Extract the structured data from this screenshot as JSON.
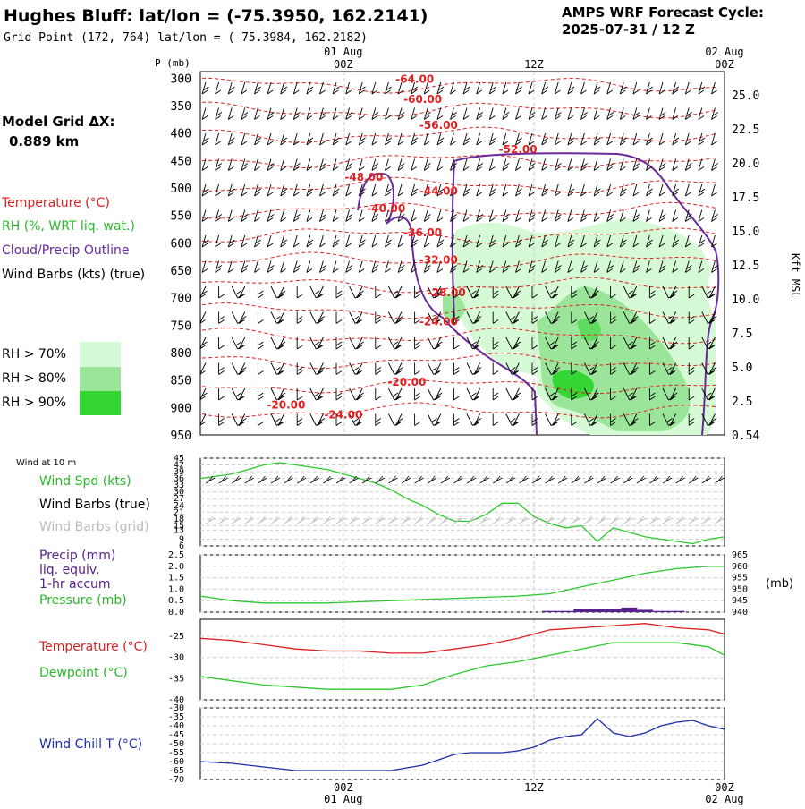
{
  "header": {
    "title": "Hughes Bluff:  lat/lon = (-75.3950, 162.2141)",
    "grid_point": "Grid Point (172, 764) lat/lon = (-75.3984, 162.2182)",
    "forecast_label": "AMPS WRF Forecast Cycle:",
    "forecast_cycle": "2025-07-31 / 12  Z"
  },
  "time_axis": {
    "ticks": [
      {
        "hour": 0,
        "time": "00Z",
        "date": "01 Aug"
      },
      {
        "hour": 12,
        "time": "12Z",
        "date": ""
      },
      {
        "hour": 24,
        "time": "00Z",
        "date": "02 Aug"
      }
    ],
    "range_hours": [
      -9,
      24
    ]
  },
  "left_labels": {
    "model_grid_label": "Model Grid ΔX:",
    "model_grid_value": "0.889 km",
    "temperature": "Temperature (°C)",
    "rh": "RH (%, WRT liq. wat.)",
    "cloud": "Cloud/Precip Outline",
    "wind_barbs": "Wind Barbs (kts) (true)",
    "rh_legend": [
      {
        "label": "RH > 70%",
        "color": "#d6fad6"
      },
      {
        "label": "RH > 80%",
        "color": "#9be59b"
      },
      {
        "label": "RH > 90%",
        "color": "#33d633"
      }
    ]
  },
  "colors": {
    "temperature": "#e02020",
    "dewpoint": "#2cc82c",
    "cloud_outline": "#6a2a9a",
    "windchill": "#1c2ea8",
    "precip": "#5a2090",
    "pressure": "#2cc82c",
    "wind_grid": "#bbbbbb",
    "grid": "#999999"
  },
  "chart_data": [
    {
      "type": "contour",
      "panel": "cross_section",
      "ylabel": "P (mb)",
      "y2label": "Kft MSL",
      "y_ticks": [
        300,
        350,
        400,
        450,
        500,
        550,
        600,
        650,
        700,
        750,
        800,
        850,
        900,
        950
      ],
      "y2_ticks": [
        "25.0",
        "22.5",
        "20.0",
        "17.5",
        "15.0",
        "12.5",
        "10.0",
        "7.5",
        "5.0",
        "2.5",
        "0.54"
      ],
      "ylim": [
        950,
        288
      ],
      "temperature_contour_labels": [
        {
          "label": "-64.00",
          "hour": 4.5,
          "p": 308
        },
        {
          "label": "-60.00",
          "hour": 5.0,
          "p": 345
        },
        {
          "label": "-56.00",
          "hour": 6.0,
          "p": 392
        },
        {
          "label": "-52.00",
          "hour": 11.0,
          "p": 436
        },
        {
          "label": "-48.00",
          "hour": 1.3,
          "p": 487
        },
        {
          "label": "-44.00",
          "hour": 6.0,
          "p": 512
        },
        {
          "label": "-40.00",
          "hour": 2.7,
          "p": 544
        },
        {
          "label": "-36.00",
          "hour": 5.0,
          "p": 588
        },
        {
          "label": "-32.00",
          "hour": 6.0,
          "p": 638
        },
        {
          "label": "-28.00",
          "hour": 6.5,
          "p": 697
        },
        {
          "label": "-24.00",
          "hour": 6.0,
          "p": 750
        },
        {
          "label": "-20.00",
          "hour": 4.0,
          "p": 860
        },
        {
          "label": "-20.00",
          "hour": -3.6,
          "p": 902
        },
        {
          "label": "-24.00",
          "hour": 0,
          "p": 920
        }
      ]
    },
    {
      "type": "line",
      "panel": "wind_10m",
      "title": "Wind at 10 m",
      "labels": [
        "Wind Spd (kts)",
        "Wind Barbs (true)",
        "Wind Barbs (grid)"
      ],
      "y_ticks": [
        6,
        9,
        13,
        15,
        18,
        21,
        24,
        27,
        30,
        33,
        36,
        39,
        42,
        45
      ],
      "ylim": [
        6,
        45
      ],
      "x": [
        -9,
        -8,
        -7,
        -6,
        -5,
        -4,
        -3,
        -2,
        -1,
        0,
        1,
        2,
        3,
        4,
        5,
        6,
        7,
        8,
        9,
        10,
        11,
        12,
        13,
        14,
        15,
        16,
        17,
        18,
        19,
        20,
        21,
        22,
        23,
        24
      ],
      "series": [
        {
          "name": "Wind Spd (kts)",
          "values": [
            36,
            37,
            38,
            40,
            42,
            43,
            42,
            41,
            40,
            38,
            36,
            34,
            31,
            27,
            24,
            20,
            17,
            17,
            20,
            25,
            25,
            19,
            16,
            14,
            15,
            8,
            14,
            12,
            10,
            9,
            8,
            7,
            9,
            10
          ]
        }
      ]
    },
    {
      "type": "bar",
      "panel": "precip_pressure",
      "labels": [
        "Precip (mm)",
        "liq. equiv.",
        "1-hr accum",
        "Pressure (mb)"
      ],
      "ylabel": "",
      "y2label": "(mb)",
      "y_ticks": [
        0.0,
        0.5,
        1.0,
        1.5,
        2.0,
        2.5
      ],
      "y2_ticks": [
        940,
        945,
        950,
        955,
        960,
        965
      ],
      "ylim": [
        0,
        2.5
      ],
      "y2lim": [
        940,
        965
      ],
      "x": [
        -9,
        -7,
        -5,
        -3,
        -1,
        1,
        3,
        5,
        7,
        9,
        11,
        13,
        15,
        17,
        19,
        21,
        23,
        24
      ],
      "series": [
        {
          "name": "Pressure (mb)",
          "values": [
            947,
            945,
            944,
            944,
            944,
            944.5,
            945,
            945.5,
            946,
            946.5,
            947,
            948,
            951,
            954,
            957,
            959,
            960,
            960
          ]
        }
      ],
      "precip_bars": [
        {
          "hour": 13,
          "value": 0.05
        },
        {
          "hour": 14,
          "value": 0.05
        },
        {
          "hour": 15,
          "value": 0.15
        },
        {
          "hour": 16,
          "value": 0.15
        },
        {
          "hour": 17,
          "value": 0.15
        },
        {
          "hour": 18,
          "value": 0.2
        },
        {
          "hour": 19,
          "value": 0.1
        },
        {
          "hour": 20,
          "value": 0.05
        },
        {
          "hour": 21,
          "value": 0.05
        }
      ]
    },
    {
      "type": "line",
      "panel": "temp_dewpoint",
      "labels": [
        "Temperature (°C)",
        "Dewpoint (°C)"
      ],
      "y_ticks": [
        -40,
        -35,
        -30,
        -25
      ],
      "ylim": [
        -40,
        -21
      ],
      "x": [
        -9,
        -7,
        -5,
        -3,
        -1,
        1,
        3,
        5,
        7,
        9,
        11,
        13,
        15,
        17,
        19,
        21,
        23,
        24
      ],
      "series": [
        {
          "name": "Temperature (°C)",
          "values": [
            -25.5,
            -26,
            -27,
            -28,
            -28.5,
            -28.5,
            -29,
            -29,
            -28,
            -27,
            -25.5,
            -23.5,
            -23,
            -22.5,
            -22,
            -23,
            -23.5,
            -24.5
          ]
        },
        {
          "name": "Dewpoint (°C)",
          "values": [
            -34.5,
            -35.5,
            -36.5,
            -37,
            -37.5,
            -37.5,
            -37.5,
            -36.5,
            -34,
            -32,
            -31,
            -29.5,
            -28,
            -26.5,
            -26.5,
            -26.5,
            -27.5,
            -29.5
          ]
        }
      ]
    },
    {
      "type": "line",
      "panel": "wind_chill",
      "labels": [
        "Wind Chill T (°C)"
      ],
      "y_ticks": [
        -70,
        -65,
        -60,
        -55,
        -50,
        -45,
        -40,
        -35,
        -30
      ],
      "ylim": [
        -70,
        -30
      ],
      "x": [
        -9,
        -7,
        -5,
        -3,
        -1,
        1,
        3,
        5,
        6,
        7,
        8,
        9,
        10,
        11,
        12,
        13,
        14,
        15,
        16,
        17,
        18,
        19,
        20,
        21,
        22,
        23,
        24
      ],
      "series": [
        {
          "name": "Wind Chill T (°C)",
          "values": [
            -60,
            -61,
            -63,
            -65,
            -65,
            -65,
            -65,
            -62,
            -59,
            -56,
            -55,
            -55,
            -55,
            -54,
            -52,
            -48,
            -46,
            -45,
            -36,
            -44,
            -46,
            -44,
            -40,
            -38,
            -37,
            -40,
            -42
          ]
        }
      ]
    }
  ]
}
